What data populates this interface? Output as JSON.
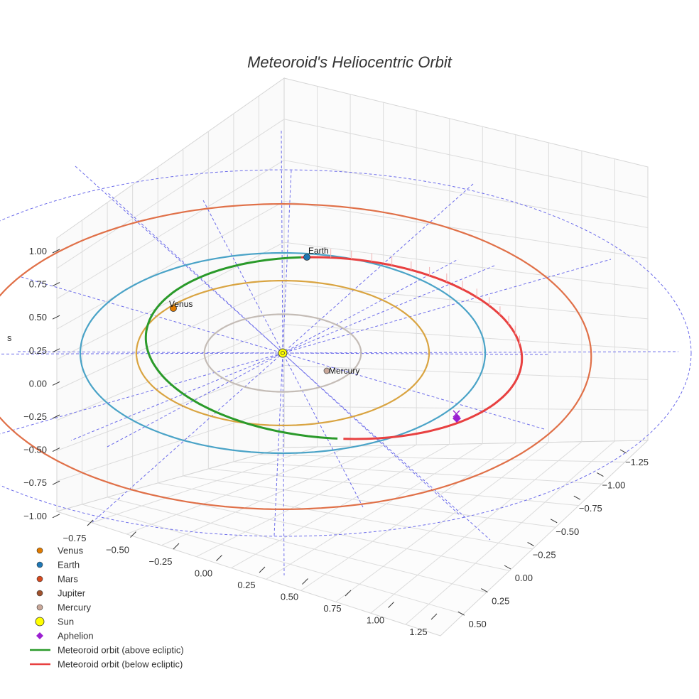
{
  "chart_data": {
    "type": "scatter3d",
    "title": "Meteoroid's Heliocentric Orbit",
    "z_axis_label": "s",
    "axes": {
      "x_ticks": [
        "−0.75",
        "−0.50",
        "−0.25",
        "0.00",
        "0.25",
        "0.50",
        "0.75",
        "1.00",
        "1.25"
      ],
      "y_ticks": [
        "−1.25",
        "−1.00",
        "−0.75",
        "−0.50",
        "−0.25",
        "0.00",
        "0.25",
        "0.50"
      ],
      "z_ticks": [
        "1.00",
        "0.75",
        "0.50",
        "0.25",
        "0.00",
        "−0.25",
        "−0.50",
        "−0.75",
        "−1.00"
      ]
    },
    "planets": [
      {
        "name": "Venus",
        "color": "#e07b00"
      },
      {
        "name": "Earth",
        "color": "#1f77b4"
      },
      {
        "name": "Mars",
        "color": "#d64a1f"
      },
      {
        "name": "Jupiter",
        "color": "#a0522d"
      },
      {
        "name": "Mercury",
        "color": "#c9a89a"
      },
      {
        "name": "Sun",
        "color": "#ffff00"
      }
    ],
    "point_labels": [
      "Venus",
      "Earth",
      "Mercury"
    ],
    "orbits": [
      {
        "name": "Mercury",
        "color": "#c4bcb6",
        "semi_major_au": 0.387
      },
      {
        "name": "Venus",
        "color": "#d9a441",
        "semi_major_au": 0.723
      },
      {
        "name": "Earth",
        "color": "#4aa3c7",
        "semi_major_au": 1.0
      },
      {
        "name": "Mars",
        "color": "#e07048",
        "semi_major_au": 1.524
      }
    ],
    "meteoroid": {
      "above_color": "#2a9a2a",
      "below_color": "#e84040",
      "aphelion_color": "#9b1fd1"
    },
    "legend": [
      {
        "label": "Venus",
        "symbol": "circle",
        "color": "#e07b00"
      },
      {
        "label": "Earth",
        "symbol": "circle",
        "color": "#1f77b4"
      },
      {
        "label": "Mars",
        "symbol": "circle",
        "color": "#d64a1f"
      },
      {
        "label": "Jupiter",
        "symbol": "circle",
        "color": "#a0522d"
      },
      {
        "label": "Mercury",
        "symbol": "circle",
        "color": "#c9a89a"
      },
      {
        "label": "Sun",
        "symbol": "circle-big",
        "color": "#ffff00"
      },
      {
        "label": "Aphelion",
        "symbol": "diamond",
        "color": "#9b1fd1"
      },
      {
        "label": "Meteoroid orbit (above ecliptic)",
        "symbol": "line",
        "color": "#2a9a2a"
      },
      {
        "label": "Meteoroid orbit (below ecliptic)",
        "symbol": "line",
        "color": "#e84040"
      }
    ],
    "grid": true,
    "legend_position": "bottom-left"
  }
}
